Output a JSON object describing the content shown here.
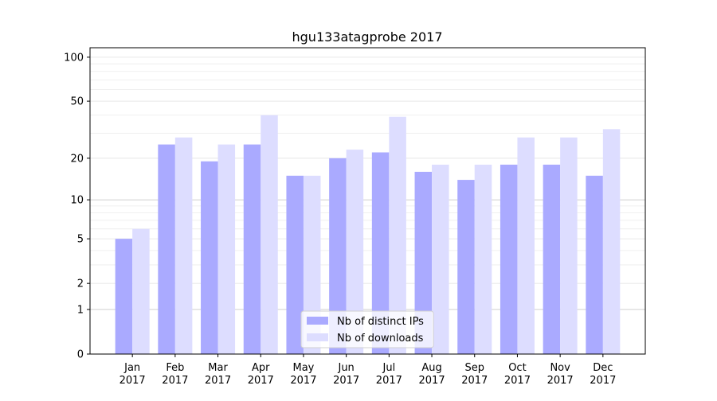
{
  "chart_data": {
    "type": "bar",
    "title": "hgu133atagprobe 2017",
    "xlabel": "",
    "ylabel": "",
    "yscale": "log(y+1)",
    "ylim": [
      0,
      116
    ],
    "yticks": [
      0,
      1,
      2,
      5,
      10,
      20,
      50,
      100
    ],
    "grid": true,
    "legend_position": "bottom-center",
    "categories": [
      [
        "Jan",
        "2017"
      ],
      [
        "Feb",
        "2017"
      ],
      [
        "Mar",
        "2017"
      ],
      [
        "Apr",
        "2017"
      ],
      [
        "May",
        "2017"
      ],
      [
        "Jun",
        "2017"
      ],
      [
        "Jul",
        "2017"
      ],
      [
        "Aug",
        "2017"
      ],
      [
        "Sep",
        "2017"
      ],
      [
        "Oct",
        "2017"
      ],
      [
        "Nov",
        "2017"
      ],
      [
        "Dec",
        "2017"
      ]
    ],
    "series": [
      {
        "name": "Nb of distinct IPs",
        "color": "#aaaaff",
        "values": [
          5,
          25,
          19,
          25,
          15,
          20,
          22,
          16,
          14,
          18,
          18,
          15
        ]
      },
      {
        "name": "Nb of downloads",
        "color": "#ddddff",
        "values": [
          6,
          28,
          25,
          40,
          15,
          23,
          39,
          18,
          18,
          28,
          28,
          32
        ]
      }
    ]
  }
}
